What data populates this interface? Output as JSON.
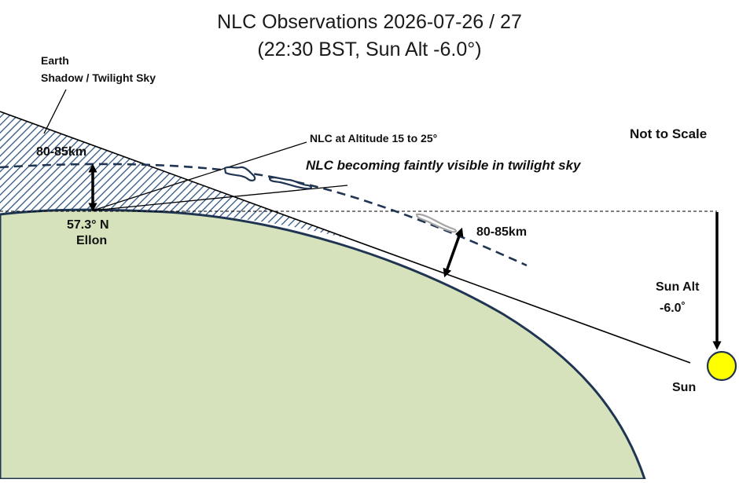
{
  "title": {
    "line1": "NLC Observations 2026-07-26 / 27",
    "line2": "(22:30 BST, Sun Alt -6.0°)"
  },
  "labels": {
    "shadow_line1": "Earth",
    "shadow_line2": "Shadow / Twilight Sky",
    "height_left": "80-85km",
    "location_lat": "57.3° N",
    "location_name": "Ellon",
    "nlc_altitude": "NLC at Altitude 15 to 25°",
    "nlc_visible": "NLC becoming faintly visible in twilight sky",
    "not_to_scale": "Not to Scale",
    "height_right": "80-85km",
    "sun_alt_label": "Sun Alt",
    "sun_alt_value": "-6.0˚",
    "sun": "Sun"
  },
  "colors": {
    "earth_fill": "#d6e2bc",
    "earth_outline": "#1f3552",
    "hatch": "#2f5683",
    "nlc_dark": "#1f3552",
    "nlc_light": "#a6a6a6",
    "sun_fill": "#ffff00",
    "line": "#000000"
  },
  "icons": {
    "sun": "sun-disc-icon",
    "arrows": "double-headed-arrow-icon"
  }
}
